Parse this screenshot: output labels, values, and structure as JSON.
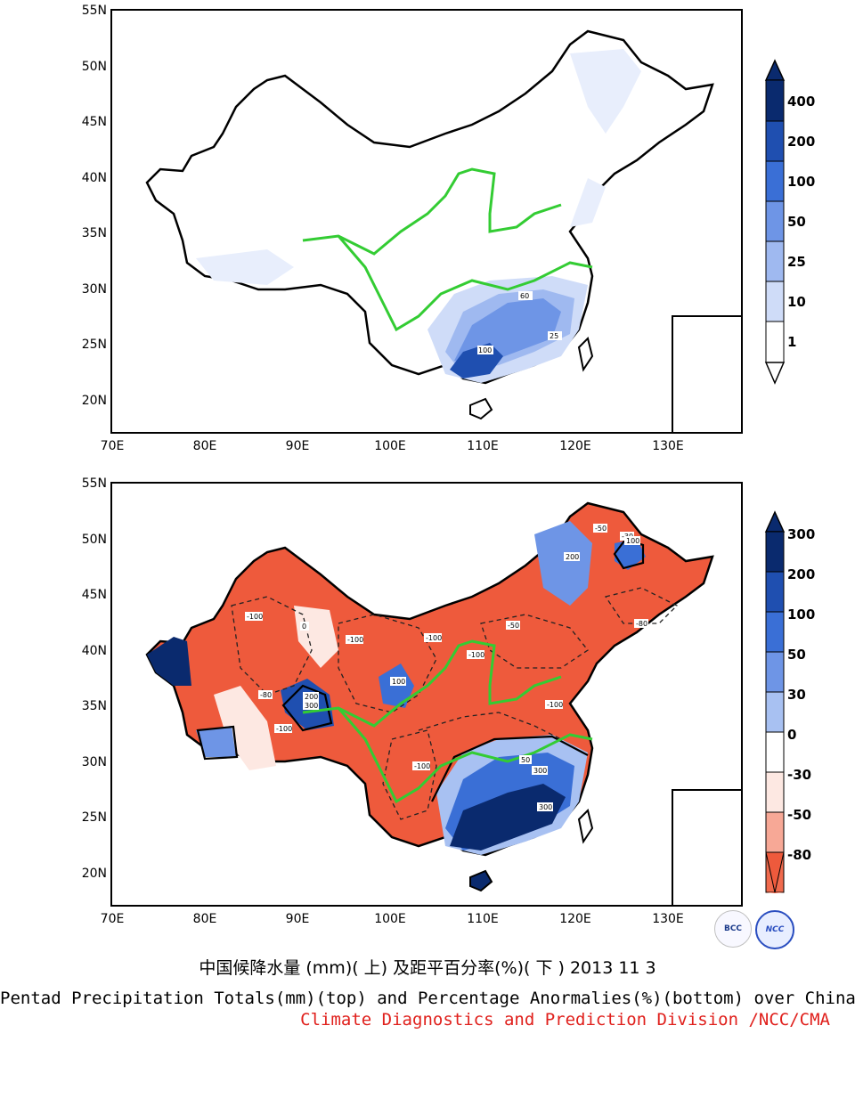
{
  "top_map": {
    "lat_labels": [
      "55N",
      "50N",
      "45N",
      "40N",
      "35N",
      "30N",
      "25N",
      "20N"
    ],
    "lon_labels": [
      "70E",
      "80E",
      "90E",
      "100E",
      "110E",
      "120E",
      "130E"
    ],
    "colorbar_labels": [
      "400",
      "200",
      "100",
      "50",
      "25",
      "10",
      "1"
    ],
    "colorbar_colors": [
      "#0a2a6e",
      "#1f4fb0",
      "#3a6fd6",
      "#6e95e6",
      "#9fb9f0",
      "#cfdcf8",
      "#ffffff"
    ],
    "contour_labels": [
      "60",
      "25",
      "100"
    ]
  },
  "bottom_map": {
    "lat_labels": [
      "55N",
      "50N",
      "45N",
      "40N",
      "35N",
      "30N",
      "25N",
      "20N"
    ],
    "lon_labels": [
      "70E",
      "80E",
      "90E",
      "100E",
      "110E",
      "120E",
      "130E"
    ],
    "colorbar_labels": [
      "300",
      "200",
      "100",
      "50",
      "30",
      "0",
      "-30",
      "-50",
      "-80"
    ],
    "colorbar_colors": [
      "#0a2a6e",
      "#1f4fb0",
      "#3a6fd6",
      "#6e95e6",
      "#a8c1f2",
      "#ffffff",
      "#fde8e2",
      "#f7a896",
      "#f06a4d",
      "#ee5a3c"
    ],
    "contour_labels": [
      "-100",
      "-80",
      "-50",
      "-30",
      "100",
      "200",
      "300",
      "50",
      "0"
    ]
  },
  "caption": {
    "chinese": "中国候降水量 (mm)( 上) 及距平百分率(%)( 下 ) 2013 11 3",
    "english": "Pentad Precipitation Totals(mm)(top) and Percentage Anormalies(%)(bottom) over China",
    "credit": "Climate Diagnostics and Prediction Division /NCC/CMA"
  },
  "logos": {
    "left": "BCC",
    "right": "NCC"
  }
}
